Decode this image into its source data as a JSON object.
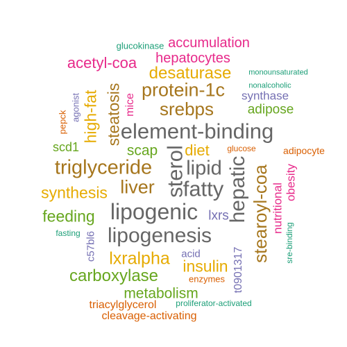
{
  "colors": {
    "teal": "#1b9e77",
    "orange": "#d95f02",
    "purple": "#7570b3",
    "pink": "#e7298a",
    "green": "#66a61e",
    "gold": "#e6ab02",
    "brown": "#a6761d",
    "gray": "#666666"
  },
  "words": [
    {
      "text": "glucokinase",
      "color": "teal"
    },
    {
      "text": "accumulation",
      "color": "pink"
    },
    {
      "text": "hepatocytes",
      "color": "pink"
    },
    {
      "text": "acetyl-coa",
      "color": "pink"
    },
    {
      "text": "desaturase",
      "color": "gold"
    },
    {
      "text": "monounsaturated",
      "color": "teal"
    },
    {
      "text": "nonalcoholic",
      "color": "teal"
    },
    {
      "text": "protein-1c",
      "color": "brown"
    },
    {
      "text": "synthase",
      "color": "purple"
    },
    {
      "text": "steatosis",
      "color": "brown"
    },
    {
      "text": "agonist",
      "color": "purple"
    },
    {
      "text": "high-fat",
      "color": "gold"
    },
    {
      "text": "mice",
      "color": "pink"
    },
    {
      "text": "srebps",
      "color": "brown"
    },
    {
      "text": "adipose",
      "color": "green"
    },
    {
      "text": "pepck",
      "color": "orange"
    },
    {
      "text": "element-binding",
      "color": "gray"
    },
    {
      "text": "scd1",
      "color": "green"
    },
    {
      "text": "scap",
      "color": "green"
    },
    {
      "text": "diet",
      "color": "gold"
    },
    {
      "text": "glucose",
      "color": "orange"
    },
    {
      "text": "adipocyte",
      "color": "orange"
    },
    {
      "text": "triglyceride",
      "color": "brown"
    },
    {
      "text": "sterol",
      "color": "gray"
    },
    {
      "text": "lipid",
      "color": "gray"
    },
    {
      "text": "hepatic",
      "color": "gray"
    },
    {
      "text": "stearoyl-coa",
      "color": "brown"
    },
    {
      "text": "obesity",
      "color": "pink"
    },
    {
      "text": "nutritional",
      "color": "pink"
    },
    {
      "text": "synthesis",
      "color": "gold"
    },
    {
      "text": "liver",
      "color": "brown"
    },
    {
      "text": "fatty",
      "color": "gray"
    },
    {
      "text": "feeding",
      "color": "green"
    },
    {
      "text": "lipogenic",
      "color": "gray"
    },
    {
      "text": "lxrs",
      "color": "purple"
    },
    {
      "text": "fasting",
      "color": "teal"
    },
    {
      "text": "c57bl6",
      "color": "purple"
    },
    {
      "text": "lipogenesis",
      "color": "gray"
    },
    {
      "text": "sre-binding",
      "color": "teal"
    },
    {
      "text": "lxralpha",
      "color": "gold"
    },
    {
      "text": "acid",
      "color": "purple"
    },
    {
      "text": "insulin",
      "color": "gold"
    },
    {
      "text": "t0901317",
      "color": "purple"
    },
    {
      "text": "carboxylase",
      "color": "green"
    },
    {
      "text": "enzymes",
      "color": "orange"
    },
    {
      "text": "metabolism",
      "color": "green"
    },
    {
      "text": "triacylglycerol",
      "color": "orange"
    },
    {
      "text": "proliferator-activated",
      "color": "teal"
    },
    {
      "text": "cleavage-activating",
      "color": "orange"
    }
  ]
}
